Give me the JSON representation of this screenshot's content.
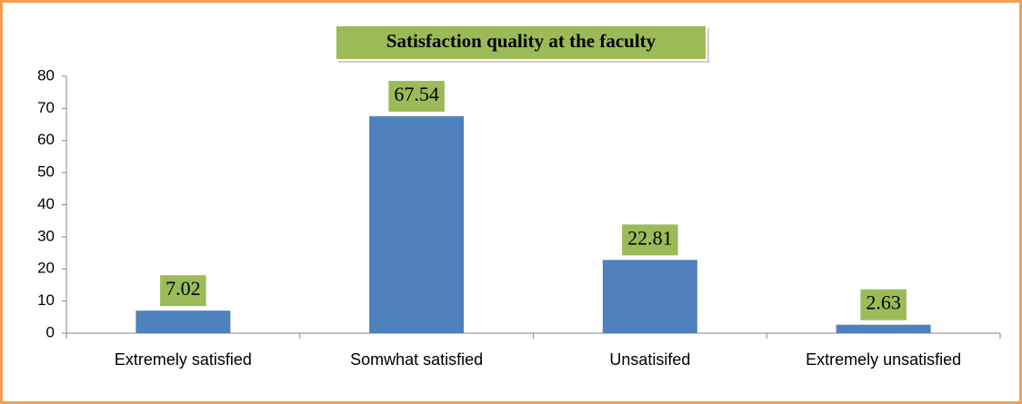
{
  "chart_data": {
    "type": "bar",
    "title": "Satisfaction quality at the faculty",
    "categories": [
      "Extremely satisfied",
      "Somwhat satisfied",
      "Unsatisifed",
      "Extremely unsatisfied"
    ],
    "values": [
      7.02,
      67.54,
      22.81,
      2.63
    ],
    "color": "#4f81bd",
    "ylim": [
      0,
      80
    ],
    "yticks": [
      0,
      10,
      20,
      30,
      40,
      50,
      60,
      70,
      80
    ],
    "grid": false
  }
}
